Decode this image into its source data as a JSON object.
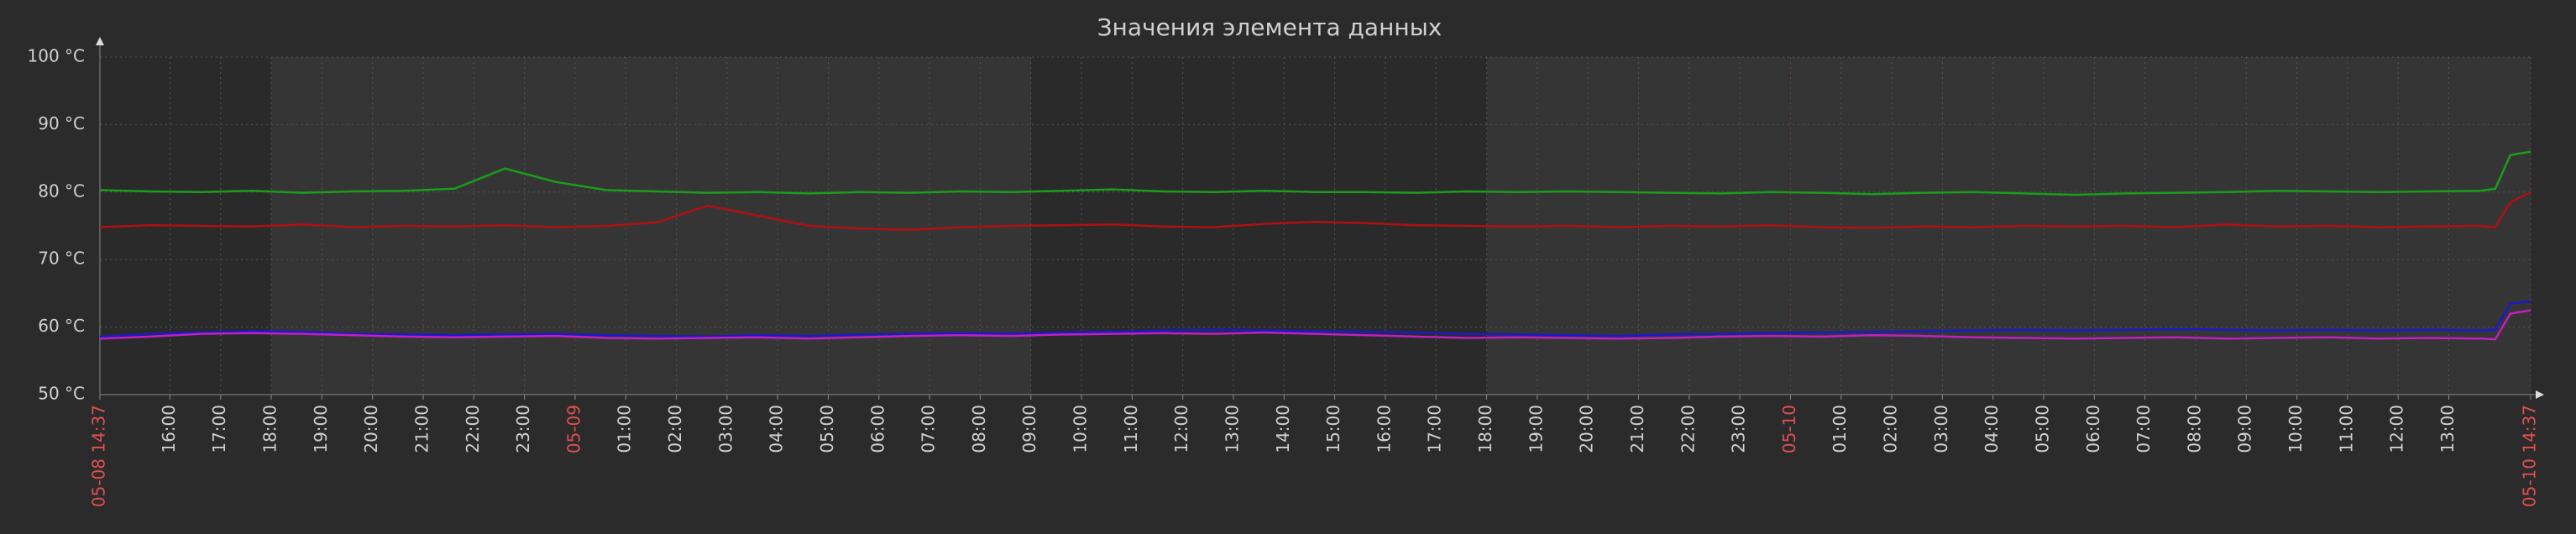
{
  "chart_data": {
    "type": "line",
    "title": "Значения элемента данных",
    "xlim": [
      0,
      2880
    ],
    "xticks": [
      {
        "value": 0,
        "label": "05-08 14:37"
      },
      {
        "value": 83,
        "label": "16:00"
      },
      {
        "value": 143,
        "label": "17:00"
      },
      {
        "value": 203,
        "label": "18:00"
      },
      {
        "value": 263,
        "label": "19:00"
      },
      {
        "value": 323,
        "label": "20:00"
      },
      {
        "value": 383,
        "label": "21:00"
      },
      {
        "value": 443,
        "label": "22:00"
      },
      {
        "value": 503,
        "label": "23:00"
      },
      {
        "value": 563,
        "label": "05-09"
      },
      {
        "value": 623,
        "label": "01:00"
      },
      {
        "value": 683,
        "label": "02:00"
      },
      {
        "value": 743,
        "label": "03:00"
      },
      {
        "value": 803,
        "label": "04:00"
      },
      {
        "value": 863,
        "label": "05:00"
      },
      {
        "value": 923,
        "label": "06:00"
      },
      {
        "value": 983,
        "label": "07:00"
      },
      {
        "value": 1043,
        "label": "08:00"
      },
      {
        "value": 1103,
        "label": "09:00"
      },
      {
        "value": 1163,
        "label": "10:00"
      },
      {
        "value": 1223,
        "label": "11:00"
      },
      {
        "value": 1283,
        "label": "12:00"
      },
      {
        "value": 1343,
        "label": "13:00"
      },
      {
        "value": 1403,
        "label": "14:00"
      },
      {
        "value": 1463,
        "label": "15:00"
      },
      {
        "value": 1523,
        "label": "16:00"
      },
      {
        "value": 1583,
        "label": "17:00"
      },
      {
        "value": 1643,
        "label": "18:00"
      },
      {
        "value": 1703,
        "label": "19:00"
      },
      {
        "value": 1763,
        "label": "20:00"
      },
      {
        "value": 1823,
        "label": "21:00"
      },
      {
        "value": 1883,
        "label": "22:00"
      },
      {
        "value": 1943,
        "label": "23:00"
      },
      {
        "value": 2003,
        "label": "05-10"
      },
      {
        "value": 2063,
        "label": "01:00"
      },
      {
        "value": 2123,
        "label": "02:00"
      },
      {
        "value": 2183,
        "label": "03:00"
      },
      {
        "value": 2243,
        "label": "04:00"
      },
      {
        "value": 2303,
        "label": "05:00"
      },
      {
        "value": 2363,
        "label": "06:00"
      },
      {
        "value": 2423,
        "label": "07:00"
      },
      {
        "value": 2483,
        "label": "08:00"
      },
      {
        "value": 2543,
        "label": "09:00"
      },
      {
        "value": 2603,
        "label": "10:00"
      },
      {
        "value": 2663,
        "label": "11:00"
      },
      {
        "value": 2723,
        "label": "12:00"
      },
      {
        "value": 2783,
        "label": "13:00"
      },
      {
        "value": 2880,
        "label": "05-10 14:37"
      }
    ],
    "ylim": [
      50,
      100
    ],
    "yticks": [
      {
        "value": 50,
        "label": "50 °C"
      },
      {
        "value": 60,
        "label": "60 °C"
      },
      {
        "value": 70,
        "label": "70 °C"
      },
      {
        "value": 80,
        "label": "80 °C"
      },
      {
        "value": 90,
        "label": "90 °C"
      },
      {
        "value": 100,
        "label": "100 °C"
      }
    ],
    "grid": true,
    "x": [
      0,
      60,
      120,
      180,
      240,
      300,
      360,
      420,
      480,
      540,
      600,
      660,
      720,
      780,
      840,
      900,
      960,
      1020,
      1080,
      1140,
      1200,
      1260,
      1320,
      1380,
      1440,
      1500,
      1560,
      1620,
      1680,
      1740,
      1800,
      1860,
      1920,
      1980,
      2040,
      2100,
      2160,
      2220,
      2280,
      2340,
      2400,
      2460,
      2520,
      2580,
      2640,
      2700,
      2760,
      2820,
      2838,
      2856,
      2880
    ],
    "series": [
      {
        "color": "#1a9e1a",
        "values": [
          80.3,
          80.1,
          80,
          80.2,
          79.9,
          80.1,
          80.2,
          80.5,
          83.5,
          81.5,
          80.3,
          80.1,
          79.9,
          80,
          79.8,
          80,
          79.9,
          80.1,
          80,
          80.2,
          80.4,
          80.1,
          80,
          80.2,
          80,
          80,
          79.9,
          80.1,
          80,
          80.1,
          80,
          79.9,
          79.8,
          80,
          79.9,
          79.7,
          79.9,
          80,
          79.8,
          79.6,
          79.8,
          79.9,
          80,
          80.2,
          80.1,
          80,
          80.1,
          80.2,
          80.5,
          85.5,
          86
        ]
      },
      {
        "color": "#b01010",
        "values": [
          74.8,
          75.1,
          75,
          74.9,
          75.2,
          74.8,
          75,
          74.9,
          75.1,
          74.8,
          75,
          75.5,
          78,
          76.5,
          75,
          74.6,
          74.4,
          74.8,
          75,
          75.1,
          75.2,
          74.9,
          74.8,
          75.3,
          75.6,
          75.4,
          75.1,
          75,
          74.9,
          75,
          74.8,
          75,
          74.9,
          75.1,
          74.8,
          74.7,
          74.9,
          74.8,
          75,
          74.9,
          75,
          74.8,
          75.2,
          74.9,
          75,
          74.8,
          74.9,
          75,
          74.8,
          78.5,
          80
        ]
      },
      {
        "color": "#1a1ac8",
        "values": [
          58.6,
          59,
          59.2,
          59.4,
          59.3,
          59,
          58.9,
          58.8,
          58.9,
          59,
          58.8,
          58.7,
          58.6,
          58.8,
          58.7,
          58.9,
          59,
          59.1,
          59,
          59.2,
          59.3,
          59.5,
          59.6,
          59.5,
          59.4,
          59.3,
          59.2,
          59,
          58.9,
          58.8,
          58.7,
          58.9,
          59,
          59.1,
          59.2,
          59.3,
          59.4,
          59.5,
          59.6,
          59.5,
          59.6,
          59.7,
          59.6,
          59.5,
          59.6,
          59.5,
          59.6,
          59.5,
          59.6,
          63.5,
          63.8
        ]
      },
      {
        "color": "#c020c0",
        "values": [
          58.3,
          58.6,
          59,
          59.1,
          59,
          58.8,
          58.6,
          58.5,
          58.6,
          58.7,
          58.4,
          58.3,
          58.4,
          58.5,
          58.3,
          58.5,
          58.7,
          58.8,
          58.7,
          58.9,
          59,
          59.1,
          59,
          59.2,
          59,
          58.8,
          58.6,
          58.4,
          58.5,
          58.4,
          58.3,
          58.4,
          58.6,
          58.7,
          58.6,
          58.8,
          58.7,
          58.5,
          58.4,
          58.3,
          58.4,
          58.5,
          58.3,
          58.4,
          58.5,
          58.3,
          58.4,
          58.3,
          58.2,
          62,
          62.5
        ]
      }
    ]
  }
}
